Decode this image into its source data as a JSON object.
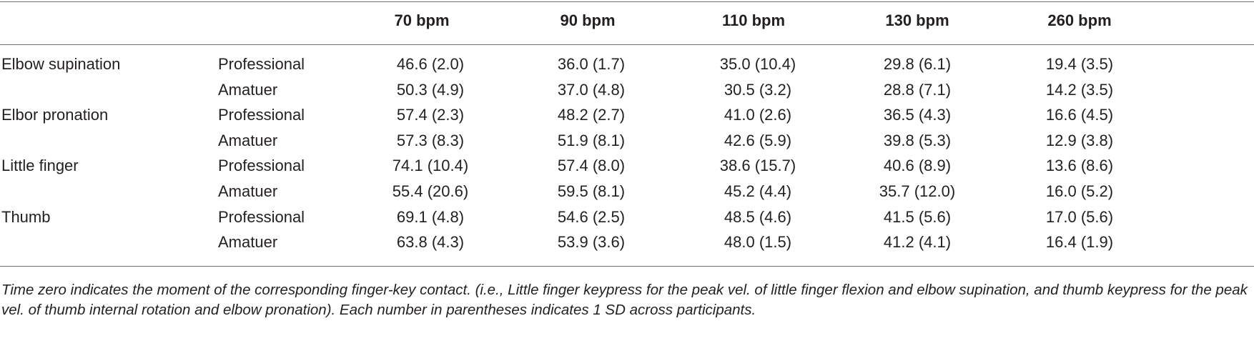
{
  "table": {
    "columns": [
      "70 bpm",
      "90 bpm",
      "110 bpm",
      "130 bpm",
      "260 bpm"
    ],
    "groups": [
      {
        "name": "Elbow supination",
        "rows": [
          {
            "level": "Professional",
            "cells": [
              "46.6 (2.0)",
              "36.0 (1.7)",
              "35.0 (10.4)",
              "29.8 (6.1)",
              "19.4 (3.5)"
            ]
          },
          {
            "level": "Amatuer",
            "cells": [
              "50.3 (4.9)",
              "37.0 (4.8)",
              "30.5 (3.2)",
              "28.8 (7.1)",
              "14.2 (3.5)"
            ]
          }
        ]
      },
      {
        "name": "Elbor pronation",
        "rows": [
          {
            "level": "Professional",
            "cells": [
              "57.4 (2.3)",
              "48.2 (2.7)",
              "41.0 (2.6)",
              "36.5 (4.3)",
              "16.6 (4.5)"
            ]
          },
          {
            "level": "Amatuer",
            "cells": [
              "57.3 (8.3)",
              "51.9 (8.1)",
              "42.6 (5.9)",
              "39.8 (5.3)",
              "12.9 (3.8)"
            ]
          }
        ]
      },
      {
        "name": "Little finger",
        "rows": [
          {
            "level": "Professional",
            "cells": [
              "74.1 (10.4)",
              "57.4 (8.0)",
              "38.6 (15.7)",
              "40.6 (8.9)",
              "13.6 (8.6)"
            ]
          },
          {
            "level": "Amatuer",
            "cells": [
              "55.4 (20.6)",
              "59.5 (8.1)",
              "45.2 (4.4)",
              "35.7 (12.0)",
              "16.0 (5.2)"
            ]
          }
        ]
      },
      {
        "name": "Thumb",
        "rows": [
          {
            "level": "Professional",
            "cells": [
              "69.1 (4.8)",
              "54.6 (2.5)",
              "48.5 (4.6)",
              "41.5 (5.6)",
              "17.0 (5.6)"
            ]
          },
          {
            "level": "Amatuer",
            "cells": [
              "63.8 (4.3)",
              "53.9 (3.6)",
              "48.0 (1.5)",
              "41.2 (4.1)",
              "16.4 (1.9)"
            ]
          }
        ]
      }
    ],
    "footnote": "Time zero indicates the moment of the corresponding finger-key contact. (i.e., Little finger keypress for the peak vel. of little finger flexion and elbow supination, and thumb keypress for the peak vel. of thumb internal rotation and elbow pronation). Each number in parentheses indicates 1 SD across participants."
  }
}
